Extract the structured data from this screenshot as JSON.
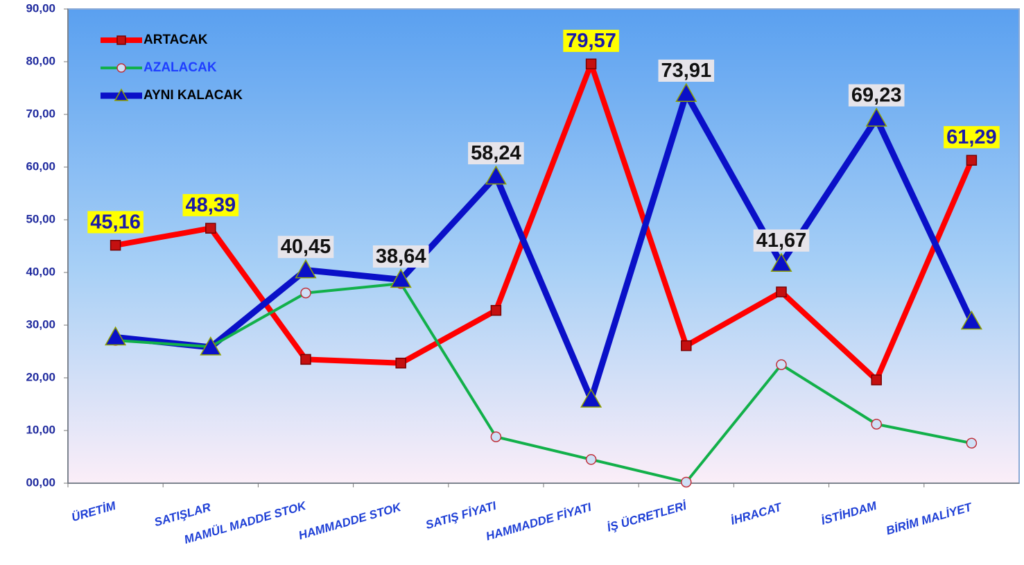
{
  "chart_data": {
    "type": "line",
    "categories": [
      "ÜRETİM",
      "SATIŞLAR",
      "MAMÜL MADDE STOK",
      "HAMMADDE STOK",
      "SATIŞ FİYATI",
      "HAMMADDE FİYATI",
      "İŞ ÜCRETLERİ",
      "İHRACAT",
      "İSTİHDAM",
      "BİRİM MALİYET"
    ],
    "series": [
      {
        "name": "ARTACAK",
        "color": "#ff0000",
        "marker": "square",
        "values": [
          45.16,
          48.39,
          23.5,
          22.8,
          32.8,
          79.57,
          26.1,
          36.3,
          19.6,
          61.29
        ],
        "value_labels": [
          "45,16",
          "48,39",
          null,
          null,
          null,
          "79,57",
          null,
          null,
          null,
          "61,29"
        ]
      },
      {
        "name": "AZALACAK",
        "color": "#12b04a",
        "marker": "circle",
        "values": [
          27.1,
          25.9,
          36.1,
          37.9,
          8.8,
          4.5,
          0.2,
          22.5,
          11.2,
          7.6
        ]
      },
      {
        "name": "AYNI KALACAK",
        "color": "#0a10c8",
        "marker": "triangle",
        "values": [
          27.7,
          25.8,
          40.45,
          38.64,
          58.24,
          15.9,
          73.91,
          41.67,
          69.23,
          30.7
        ],
        "value_labels": [
          null,
          null,
          "40,45",
          "38,64",
          "58,24",
          null,
          "73,91",
          "41,67",
          "69,23",
          null
        ]
      }
    ],
    "ylim": [
      0,
      90
    ],
    "yticks": [
      {
        "value": 0,
        "label": "00,00"
      },
      {
        "value": 10,
        "label": "10,00"
      },
      {
        "value": 20,
        "label": "20,00"
      },
      {
        "value": 30,
        "label": "30,00"
      },
      {
        "value": 40,
        "label": "40,00"
      },
      {
        "value": 50,
        "label": "50,00"
      },
      {
        "value": 60,
        "label": "60,00"
      },
      {
        "value": 70,
        "label": "70,00"
      },
      {
        "value": 80,
        "label": "80,00"
      },
      {
        "value": 90,
        "label": "90,00"
      }
    ],
    "legend": "top-left"
  }
}
